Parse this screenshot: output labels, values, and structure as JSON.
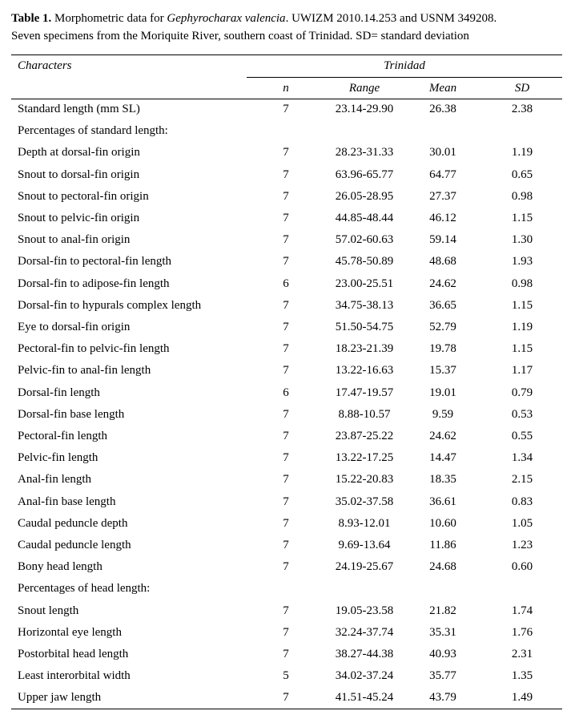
{
  "caption": {
    "label": "Table 1.",
    "text1": " Morphometric data for ",
    "species": "Gephyrocharax valencia",
    "text2": ". UWIZM 2010.14.253 and USNM 349208.",
    "text3": "Seven specimens from the Moriquite River, southern coast of Trinidad. SD= standard deviation"
  },
  "table": {
    "header": {
      "characters": "Characters",
      "group": "Trinidad",
      "n": "n",
      "range": "Range",
      "mean": "Mean",
      "sd": "SD"
    },
    "rows": [
      {
        "label": "Standard length (mm SL)",
        "n": "7",
        "range": "23.14-29.90",
        "mean": "26.38",
        "sd": "2.38"
      },
      {
        "section": "Percentages of standard length:"
      },
      {
        "label": "Depth at dorsal-fin origin",
        "n": "7",
        "range": "28.23-31.33",
        "mean": "30.01",
        "sd": "1.19"
      },
      {
        "label": "Snout to dorsal-fin origin",
        "n": "7",
        "range": "63.96-65.77",
        "mean": "64.77",
        "sd": "0.65"
      },
      {
        "label": "Snout to pectoral-fin origin",
        "n": "7",
        "range": "26.05-28.95",
        "mean": "27.37",
        "sd": "0.98"
      },
      {
        "label": "Snout to pelvic-fin origin",
        "n": "7",
        "range": "44.85-48.44",
        "mean": "46.12",
        "sd": "1.15"
      },
      {
        "label": "Snout to anal-fin origin",
        "n": "7",
        "range": "57.02-60.63",
        "mean": "59.14",
        "sd": "1.30"
      },
      {
        "label": "Dorsal-fin to pectoral-fin length",
        "n": "7",
        "range": "45.78-50.89",
        "mean": "48.68",
        "sd": "1.93"
      },
      {
        "label": "Dorsal-fin to adipose-fin length",
        "n": "6",
        "range": "23.00-25.51",
        "mean": "24.62",
        "sd": "0.98"
      },
      {
        "label": "Dorsal-fin to hypurals complex length",
        "n": "7",
        "range": "34.75-38.13",
        "mean": "36.65",
        "sd": "1.15"
      },
      {
        "label": "Eye to dorsal-fin origin",
        "n": "7",
        "range": "51.50-54.75",
        "mean": "52.79",
        "sd": "1.19"
      },
      {
        "label": "Pectoral-fin to pelvic-fin length",
        "n": "7",
        "range": "18.23-21.39",
        "mean": "19.78",
        "sd": "1.15"
      },
      {
        "label": "Pelvic-fin to anal-fin length",
        "n": "7",
        "range": "13.22-16.63",
        "mean": "15.37",
        "sd": "1.17"
      },
      {
        "label": "Dorsal-fin length",
        "n": "6",
        "range": "17.47-19.57",
        "mean": "19.01",
        "sd": "0.79"
      },
      {
        "label": "Dorsal-fin base length",
        "n": "7",
        "range": "8.88-10.57",
        "mean": "9.59",
        "sd": "0.53"
      },
      {
        "label": "Pectoral-fin length",
        "n": "7",
        "range": "23.87-25.22",
        "mean": "24.62",
        "sd": "0.55"
      },
      {
        "label": "Pelvic-fin length",
        "n": "7",
        "range": "13.22-17.25",
        "mean": "14.47",
        "sd": "1.34"
      },
      {
        "label": "Anal-fin length",
        "n": "7",
        "range": "15.22-20.83",
        "mean": "18.35",
        "sd": "2.15"
      },
      {
        "label": "Anal-fin base length",
        "n": "7",
        "range": "35.02-37.58",
        "mean": "36.61",
        "sd": "0.83"
      },
      {
        "label": "Caudal peduncle depth",
        "n": "7",
        "range": "8.93-12.01",
        "mean": "10.60",
        "sd": "1.05"
      },
      {
        "label": "Caudal peduncle length",
        "n": "7",
        "range": "9.69-13.64",
        "mean": "11.86",
        "sd": "1.23"
      },
      {
        "label": "Bony head length",
        "n": "7",
        "range": "24.19-25.67",
        "mean": "24.68",
        "sd": "0.60"
      },
      {
        "section": "Percentages of head length:"
      },
      {
        "label": "Snout length",
        "n": "7",
        "range": "19.05-23.58",
        "mean": "21.82",
        "sd": "1.74"
      },
      {
        "label": "Horizontal eye length",
        "n": "7",
        "range": "32.24-37.74",
        "mean": "35.31",
        "sd": "1.76"
      },
      {
        "label": "Postorbital head length",
        "n": "7",
        "range": "38.27-44.38",
        "mean": "40.93",
        "sd": "2.31"
      },
      {
        "label": "Least interorbital width",
        "n": "5",
        "range": "34.02-37.24",
        "mean": "35.77",
        "sd": "1.35"
      },
      {
        "label": "Upper jaw length",
        "n": "7",
        "range": "41.51-45.24",
        "mean": "43.79",
        "sd": "1.49"
      }
    ]
  }
}
